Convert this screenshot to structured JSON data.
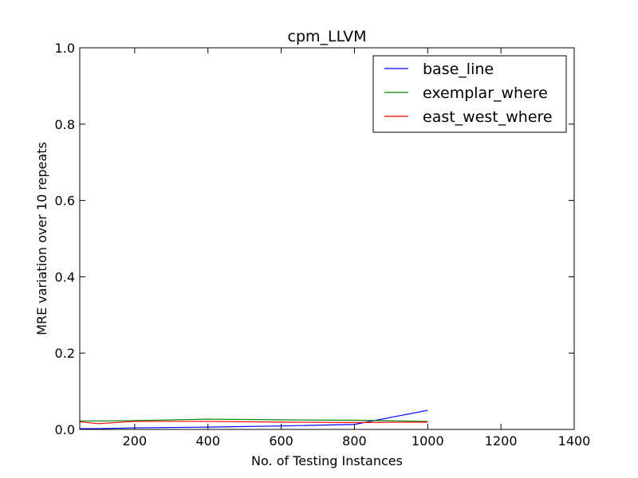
{
  "chart_data": {
    "type": "line",
    "title": "cpm_LLVM",
    "xlabel": "No. of Testing Instances",
    "ylabel": "MRE variation over 10 repeats",
    "xlim": [
      50,
      1400
    ],
    "ylim": [
      0.0,
      1.0
    ],
    "xticks": [
      200,
      400,
      600,
      800,
      1000,
      1200,
      1400
    ],
    "xtick_labels": [
      "200",
      "400",
      "600",
      "800",
      "1000",
      "1200",
      "1400"
    ],
    "yticks": [
      0.0,
      0.2,
      0.4,
      0.6,
      0.8,
      1.0
    ],
    "ytick_labels": [
      "0.0",
      "0.2",
      "0.4",
      "0.6",
      "0.8",
      "1.0"
    ],
    "grid": false,
    "legend_position": "top-right",
    "series": [
      {
        "name": "base_line",
        "color": "#0000ff",
        "x": [
          50,
          100,
          200,
          400,
          600,
          800,
          1000
        ],
        "y": [
          0.002,
          0.002,
          0.004,
          0.006,
          0.009,
          0.013,
          0.05
        ]
      },
      {
        "name": "exemplar_where",
        "color": "#008000",
        "x": [
          50,
          100,
          200,
          400,
          600,
          800,
          1000
        ],
        "y": [
          0.022,
          0.022,
          0.023,
          0.027,
          0.025,
          0.024,
          0.021
        ]
      },
      {
        "name": "east_west_where",
        "color": "#ff0000",
        "x": [
          50,
          100,
          200,
          400,
          600,
          800,
          1000
        ],
        "y": [
          0.02,
          0.015,
          0.021,
          0.021,
          0.019,
          0.018,
          0.019
        ]
      }
    ]
  }
}
